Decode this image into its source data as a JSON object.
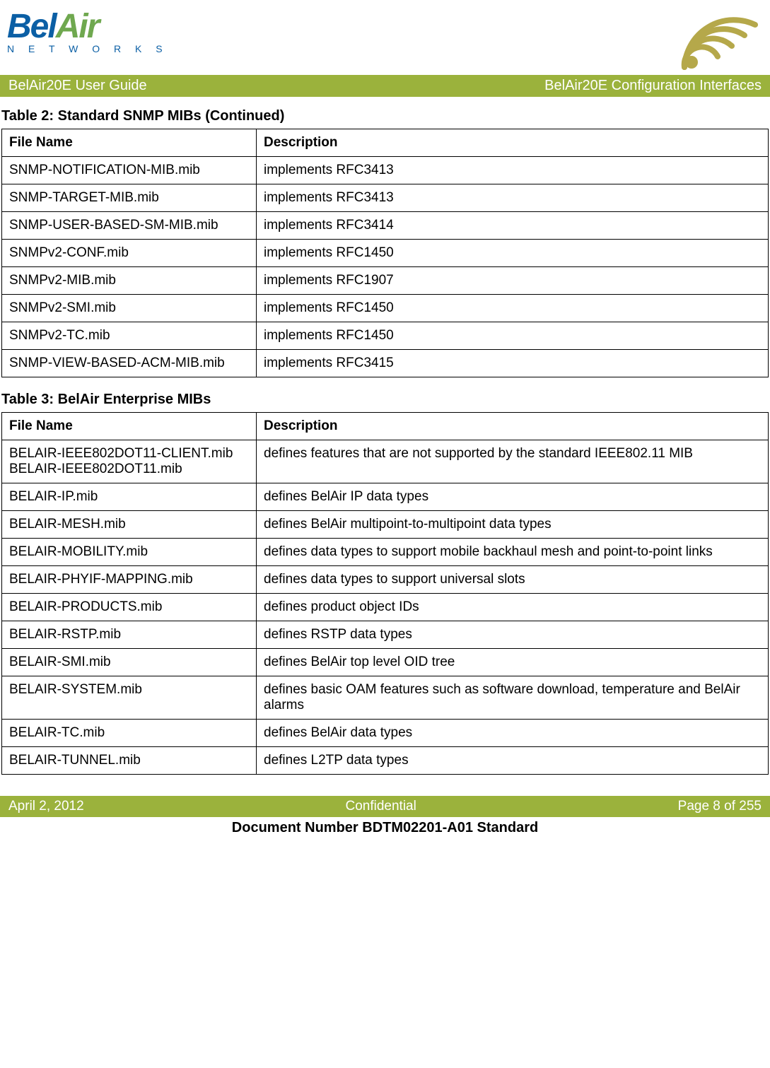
{
  "logo": {
    "bel": "Bel",
    "air": "Air",
    "networks": "N E T W O R K S"
  },
  "header": {
    "left": "BelAir20E User Guide",
    "right": "BelAir20E Configuration Interfaces"
  },
  "table2": {
    "caption": "Table 2: Standard SNMP MIBs  (Continued)",
    "columns": [
      "File Name",
      "Description"
    ],
    "rows": [
      [
        "SNMP-NOTIFICATION-MIB.mib",
        "implements RFC3413"
      ],
      [
        "SNMP-TARGET-MIB.mib",
        "implements RFC3413"
      ],
      [
        "SNMP-USER-BASED-SM-MIB.mib",
        "implements RFC3414"
      ],
      [
        "SNMPv2-CONF.mib",
        "implements RFC1450"
      ],
      [
        "SNMPv2-MIB.mib",
        "implements RFC1907"
      ],
      [
        "SNMPv2-SMI.mib",
        "implements RFC1450"
      ],
      [
        "SNMPv2-TC.mib",
        "implements RFC1450"
      ],
      [
        "SNMP-VIEW-BASED-ACM-MIB.mib",
        "implements RFC3415"
      ]
    ]
  },
  "table3": {
    "caption": "Table 3: BelAir Enterprise MIBs",
    "columns": [
      "File Name",
      "Description"
    ],
    "rows": [
      [
        "BELAIR-IEEE802DOT11-CLIENT.mib\nBELAIR-IEEE802DOT11.mib",
        "defines features that are not supported by the standard IEEE802.11 MIB"
      ],
      [
        "BELAIR-IP.mib",
        "defines BelAir IP data types"
      ],
      [
        "BELAIR-MESH.mib",
        "defines BelAir multipoint-to-multipoint data types"
      ],
      [
        "BELAIR-MOBILITY.mib",
        "defines data types to support mobile backhaul mesh and point-to-point links"
      ],
      [
        "BELAIR-PHYIF-MAPPING.mib",
        "defines data types to support universal slots"
      ],
      [
        "BELAIR-PRODUCTS.mib",
        "defines product object IDs"
      ],
      [
        "BELAIR-RSTP.mib",
        "defines RSTP data types"
      ],
      [
        "BELAIR-SMI.mib",
        "defines BelAir top level OID tree"
      ],
      [
        "BELAIR-SYSTEM.mib",
        "defines basic OAM features such as software download, temperature and BelAir alarms"
      ],
      [
        "BELAIR-TC.mib",
        "defines BelAir data types"
      ],
      [
        "BELAIR-TUNNEL.mib",
        "defines L2TP data types"
      ]
    ]
  },
  "footer": {
    "left": "April 2, 2012",
    "center": "Confidential",
    "right": "Page 8 of 255"
  },
  "doc_number": "Document Number BDTM02201-A01 Standard",
  "colors": {
    "brand_blue": "#0b5fa5",
    "brand_green": "#6fa84f",
    "strip_olive": "#9bb23c",
    "swish_olive": "#b5a84a"
  }
}
